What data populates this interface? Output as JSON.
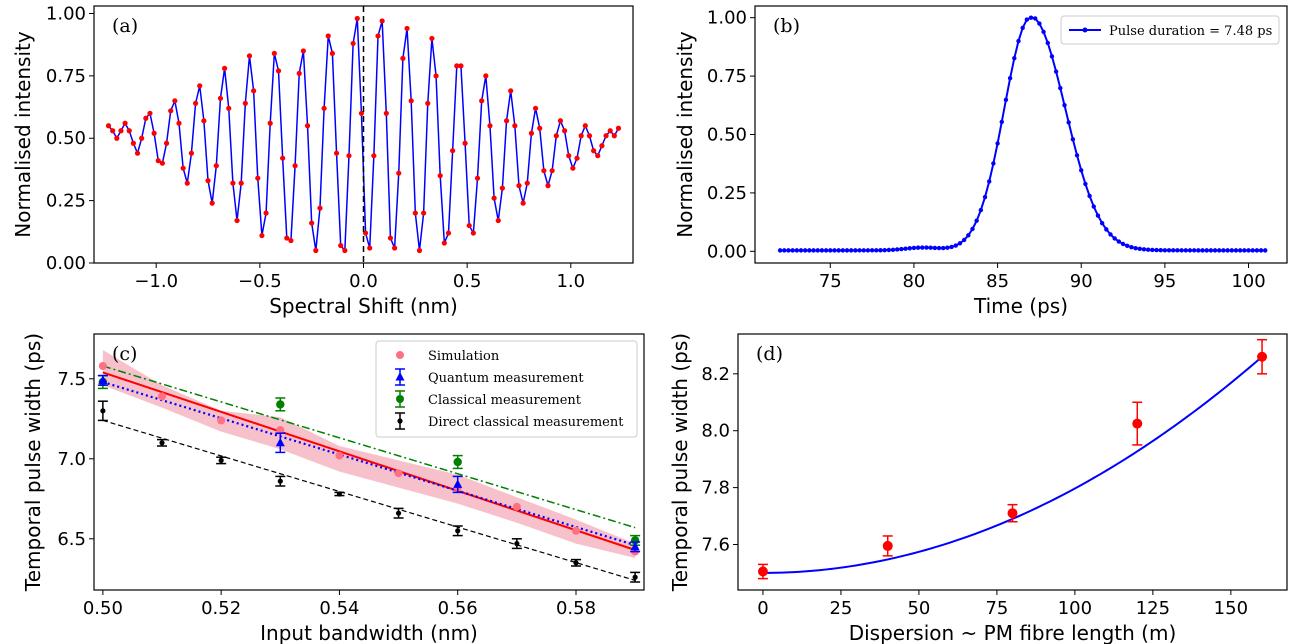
{
  "chart_data": [
    {
      "id": "a",
      "type": "line",
      "panel_label": "(a)",
      "xlabel": "Spectral Shift (nm)",
      "ylabel": "Normalised intensity",
      "xlim": [
        -1.3,
        1.3
      ],
      "ylim": [
        0.0,
        1.03
      ],
      "xticks": [
        -1.0,
        -0.5,
        0.0,
        0.5,
        1.0
      ],
      "xtick_labels": [
        "−1.0",
        "−0.5",
        "0.0",
        "0.5",
        "1.0"
      ],
      "yticks": [
        0.0,
        0.25,
        0.5,
        0.75,
        1.0
      ],
      "ytick_labels": [
        "0.00",
        "0.25",
        "0.50",
        "0.75",
        "1.00"
      ],
      "vline_x": 0.0,
      "colors": {
        "line": "#0000ff",
        "points": "#ff0000",
        "vline": "#000000"
      },
      "series": [
        {
          "x": [
            -1.23,
            -1.21,
            -1.19,
            -1.17,
            -1.15,
            -1.13,
            -1.11,
            -1.09,
            -1.07,
            -1.05,
            -1.03,
            -1.01,
            -0.99,
            -0.97,
            -0.95,
            -0.93,
            -0.91,
            -0.89,
            -0.87,
            -0.85,
            -0.83,
            -0.81,
            -0.79,
            -0.77,
            -0.75,
            -0.73,
            -0.71,
            -0.69,
            -0.67,
            -0.65,
            -0.63,
            -0.61,
            -0.59,
            -0.57,
            -0.55,
            -0.53,
            -0.51,
            -0.49,
            -0.47,
            -0.45,
            -0.43,
            -0.41,
            -0.39,
            -0.37,
            -0.35,
            -0.33,
            -0.31,
            -0.29,
            -0.27,
            -0.25,
            -0.23,
            -0.21,
            -0.19,
            -0.17,
            -0.15,
            -0.13,
            -0.11,
            -0.09,
            -0.07,
            -0.05,
            -0.03,
            -0.01,
            0.01,
            0.03,
            0.05,
            0.07,
            0.09,
            0.11,
            0.13,
            0.15,
            0.17,
            0.19,
            0.21,
            0.23,
            0.25,
            0.27,
            0.29,
            0.31,
            0.33,
            0.35,
            0.37,
            0.39,
            0.41,
            0.43,
            0.45,
            0.47,
            0.49,
            0.51,
            0.53,
            0.55,
            0.57,
            0.59,
            0.61,
            0.63,
            0.65,
            0.67,
            0.69,
            0.71,
            0.73,
            0.75,
            0.77,
            0.79,
            0.81,
            0.83,
            0.85,
            0.87,
            0.89,
            0.91,
            0.93,
            0.95,
            0.97,
            0.99,
            1.01,
            1.03,
            1.05,
            1.07,
            1.09,
            1.11,
            1.13,
            1.15,
            1.17,
            1.19,
            1.21,
            1.23
          ],
          "y": [
            0.55,
            0.53,
            0.5,
            0.53,
            0.56,
            0.53,
            0.48,
            0.44,
            0.5,
            0.58,
            0.6,
            0.52,
            0.41,
            0.4,
            0.48,
            0.61,
            0.65,
            0.56,
            0.38,
            0.32,
            0.44,
            0.64,
            0.71,
            0.57,
            0.33,
            0.24,
            0.39,
            0.66,
            0.78,
            0.62,
            0.32,
            0.17,
            0.32,
            0.64,
            0.83,
            0.69,
            0.34,
            0.11,
            0.2,
            0.56,
            0.84,
            0.77,
            0.42,
            0.1,
            0.09,
            0.39,
            0.76,
            0.85,
            0.55,
            0.16,
            0.05,
            0.22,
            0.62,
            0.91,
            0.84,
            0.44,
            0.07,
            0.05,
            0.43,
            0.88,
            0.98,
            0.6,
            0.12,
            0.06,
            0.43,
            0.91,
            0.97,
            0.6,
            0.1,
            0.06,
            0.36,
            0.82,
            0.94,
            0.65,
            0.2,
            0.05,
            0.2,
            0.64,
            0.9,
            0.75,
            0.35,
            0.08,
            0.12,
            0.45,
            0.79,
            0.79,
            0.48,
            0.15,
            0.12,
            0.34,
            0.65,
            0.75,
            0.55,
            0.26,
            0.17,
            0.3,
            0.57,
            0.69,
            0.55,
            0.31,
            0.24,
            0.32,
            0.52,
            0.62,
            0.54,
            0.37,
            0.31,
            0.37,
            0.51,
            0.57,
            0.53,
            0.43,
            0.38,
            0.42,
            0.51,
            0.55,
            0.51,
            0.45,
            0.43,
            0.47,
            0.51,
            0.53,
            0.51,
            0.54
          ]
        }
      ]
    },
    {
      "id": "b",
      "type": "line",
      "panel_label": "(b)",
      "xlabel": "Time (ps)",
      "ylabel": "Normalised intensity",
      "xlim": [
        70.5,
        102.3
      ],
      "ylim": [
        -0.05,
        1.05
      ],
      "xticks": [
        75,
        80,
        85,
        90,
        95,
        100
      ],
      "xtick_labels": [
        "75",
        "80",
        "85",
        "90",
        "95",
        "100"
      ],
      "yticks": [
        0.0,
        0.25,
        0.5,
        0.75,
        1.0
      ],
      "ytick_labels": [
        "0.00",
        "0.25",
        "0.50",
        "0.75",
        "1.00"
      ],
      "legend": {
        "label": "Pulse duration = 7.48 ps",
        "position": "upper right"
      },
      "colors": {
        "line": "#0000ff",
        "points": "#0000ff"
      },
      "pulse_params": {
        "start": 72,
        "end": 101,
        "step": 0.25,
        "center": 87.0,
        "sigma_left": 1.6,
        "sigma_right": 2.05,
        "bump_center": 80.5,
        "bump_amp": 0.012,
        "bump_width": 1.0
      }
    },
    {
      "id": "c",
      "type": "scatter",
      "panel_label": "(c)",
      "xlabel": "Input bandwidth (nm)",
      "ylabel": "Temporal pulse width (ps)",
      "xlim": [
        0.4985,
        0.5915
      ],
      "ylim": [
        6.18,
        7.78
      ],
      "xticks": [
        0.5,
        0.52,
        0.54,
        0.56,
        0.58
      ],
      "xtick_labels": [
        "0.50",
        "0.52",
        "0.54",
        "0.56",
        "0.58"
      ],
      "yticks": [
        6.5,
        7.0,
        7.5
      ],
      "ytick_labels": [
        "6.5",
        "7.0",
        "7.5"
      ],
      "legend": {
        "position": "upper right",
        "entries": [
          "Simulation",
          "Quantum measurement",
          "Classical measurement",
          "Direct classical measurement"
        ]
      },
      "simulation": {
        "x": [
          0.5,
          0.51,
          0.52,
          0.53,
          0.54,
          0.55,
          0.56,
          0.57,
          0.58,
          0.59
        ],
        "y": [
          7.58,
          7.39,
          7.24,
          7.18,
          7.02,
          6.91,
          6.82,
          6.7,
          6.55,
          6.42
        ],
        "band_lower": [
          7.46,
          7.32,
          7.17,
          7.06,
          6.92,
          6.82,
          6.72,
          6.6,
          6.47,
          6.38
        ],
        "band_upper": [
          7.68,
          7.46,
          7.3,
          7.26,
          7.08,
          6.99,
          6.9,
          6.76,
          6.62,
          6.47
        ],
        "color": "#ff7082",
        "band_color": "#f4a7b6"
      },
      "simulation_fit": {
        "x": [
          0.5,
          0.59
        ],
        "y": [
          7.54,
          6.43
        ],
        "color": "#ff0000",
        "style": "solid"
      },
      "quantum": {
        "x": [
          0.5,
          0.53,
          0.56,
          0.59
        ],
        "y": [
          7.49,
          7.1,
          6.84,
          6.45
        ],
        "err": [
          0.03,
          0.06,
          0.05,
          0.03
        ],
        "fit": {
          "x": [
            0.5,
            0.59
          ],
          "y": [
            7.48,
            6.46
          ]
        },
        "color": "#0000ff"
      },
      "classical": {
        "x": [
          0.5,
          0.53,
          0.56,
          0.59
        ],
        "y": [
          7.48,
          7.34,
          6.98,
          6.49
        ],
        "err": [
          0.04,
          0.04,
          0.04,
          0.03
        ],
        "fit": {
          "x": [
            0.5,
            0.59
          ],
          "y": [
            7.58,
            6.57
          ]
        },
        "color": "#008000"
      },
      "direct": {
        "x": [
          0.5,
          0.51,
          0.52,
          0.53,
          0.54,
          0.55,
          0.56,
          0.57,
          0.58,
          0.59
        ],
        "y": [
          7.3,
          7.1,
          6.99,
          6.86,
          6.78,
          6.66,
          6.55,
          6.47,
          6.35,
          6.26
        ],
        "err": [
          0.06,
          0.02,
          0.02,
          0.03,
          0.01,
          0.03,
          0.03,
          0.03,
          0.02,
          0.03
        ],
        "fit": {
          "x": [
            0.5,
            0.59
          ],
          "y": [
            7.24,
            6.24
          ]
        },
        "color": "#000000"
      }
    },
    {
      "id": "d",
      "type": "scatter",
      "panel_label": "(d)",
      "xlabel": "Dispersion ~ PM fibre length (m)",
      "ylabel": "Temporal pulse width (ps)",
      "xlim": [
        -8,
        168
      ],
      "ylim": [
        7.44,
        8.34
      ],
      "xticks": [
        0,
        25,
        50,
        75,
        100,
        125,
        150
      ],
      "xtick_labels": [
        "0",
        "25",
        "50",
        "75",
        "100",
        "125",
        "150"
      ],
      "yticks": [
        7.6,
        7.8,
        8.0,
        8.2
      ],
      "ytick_labels": [
        "7.6",
        "7.8",
        "8.0",
        "8.2"
      ],
      "points": {
        "x": [
          0,
          40,
          80,
          120,
          160
        ],
        "y": [
          7.505,
          7.595,
          7.71,
          8.025,
          8.26
        ],
        "err": [
          0.025,
          0.035,
          0.03,
          0.075,
          0.06
        ],
        "color": "#ff0000"
      },
      "fit": {
        "type": "quadratic",
        "x_start": 0,
        "x_end": 160,
        "y0": 7.5,
        "y_end": 8.26,
        "color": "#0000ff"
      }
    }
  ]
}
